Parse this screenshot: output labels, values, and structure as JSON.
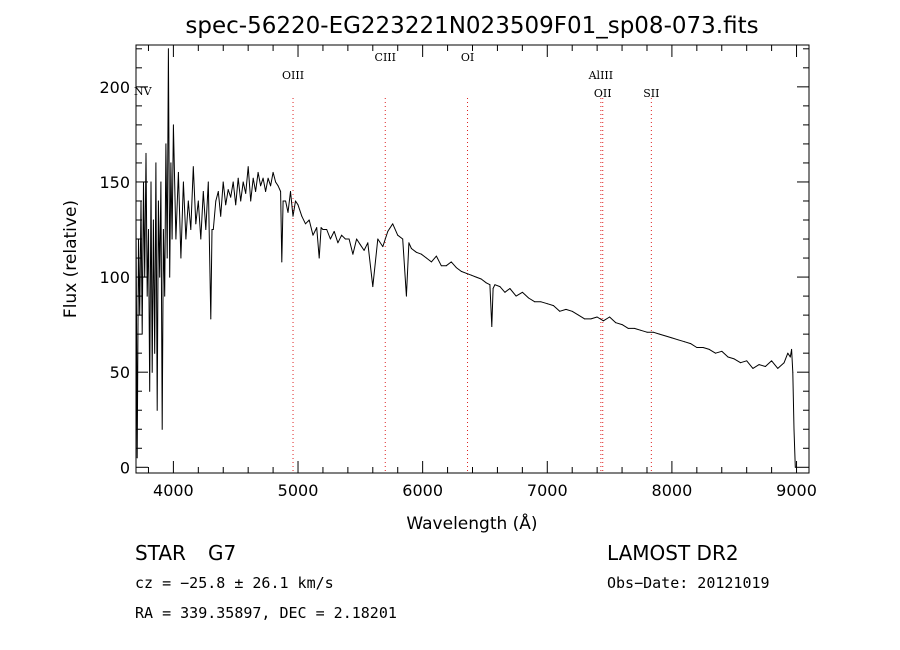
{
  "chart_data": {
    "type": "line",
    "title": "spec-56220-EG223221N023509F01_sp08-073.fits",
    "xlabel": "Wavelength (Å)",
    "ylabel": "Flux (relative)",
    "xlim": [
      3700,
      9100
    ],
    "ylim": [
      -3,
      222
    ],
    "x_ticks": [
      4000,
      5000,
      6000,
      7000,
      8000,
      9000
    ],
    "y_ticks": [
      0,
      50,
      100,
      150,
      200
    ],
    "series": [
      {
        "name": "spectrum",
        "x": [
          3700,
          3710,
          3720,
          3730,
          3740,
          3750,
          3760,
          3770,
          3780,
          3790,
          3800,
          3810,
          3820,
          3830,
          3840,
          3850,
          3860,
          3870,
          3880,
          3890,
          3900,
          3910,
          3920,
          3930,
          3940,
          3950,
          3960,
          3970,
          3980,
          3990,
          4000,
          4020,
          4040,
          4060,
          4080,
          4100,
          4120,
          4140,
          4160,
          4180,
          4200,
          4220,
          4240,
          4260,
          4280,
          4300,
          4310,
          4320,
          4340,
          4360,
          4380,
          4400,
          4420,
          4440,
          4460,
          4480,
          4500,
          4520,
          4540,
          4560,
          4580,
          4600,
          4620,
          4640,
          4660,
          4680,
          4700,
          4720,
          4740,
          4760,
          4780,
          4800,
          4820,
          4840,
          4860,
          4870,
          4880,
          4900,
          4920,
          4940,
          4960,
          4980,
          5000,
          5030,
          5060,
          5090,
          5120,
          5150,
          5170,
          5185,
          5200,
          5230,
          5260,
          5290,
          5320,
          5350,
          5380,
          5410,
          5440,
          5470,
          5500,
          5530,
          5560,
          5600,
          5640,
          5680,
          5720,
          5760,
          5800,
          5840,
          5870,
          5890,
          5910,
          5950,
          5990,
          6030,
          6070,
          6110,
          6150,
          6190,
          6230,
          6270,
          6310,
          6350,
          6390,
          6430,
          6470,
          6510,
          6540,
          6555,
          6565,
          6580,
          6620,
          6660,
          6700,
          6750,
          6800,
          6850,
          6900,
          6950,
          7000,
          7050,
          7100,
          7150,
          7200,
          7250,
          7300,
          7350,
          7400,
          7450,
          7500,
          7550,
          7600,
          7650,
          7700,
          7750,
          7800,
          7850,
          7900,
          7950,
          8000,
          8050,
          8100,
          8150,
          8200,
          8250,
          8300,
          8350,
          8400,
          8450,
          8500,
          8550,
          8600,
          8650,
          8700,
          8750,
          8800,
          8850,
          8900,
          8930,
          8950,
          8960,
          8970,
          8980,
          8990,
          9000
        ],
        "y": [
          130,
          5,
          120,
          80,
          140,
          70,
          150,
          100,
          165,
          90,
          125,
          40,
          150,
          50,
          130,
          60,
          160,
          30,
          140,
          100,
          150,
          20,
          125,
          90,
          170,
          110,
          220,
          100,
          160,
          120,
          180,
          120,
          155,
          110,
          150,
          120,
          140,
          125,
          158,
          128,
          140,
          120,
          145,
          125,
          150,
          78,
          125,
          125,
          140,
          145,
          132,
          150,
          138,
          146,
          142,
          150,
          138,
          152,
          140,
          150,
          144,
          158,
          140,
          152,
          145,
          155,
          148,
          152,
          145,
          152,
          148,
          155,
          150,
          148,
          145,
          108,
          140,
          140,
          134,
          145,
          132,
          140,
          138,
          132,
          128,
          130,
          122,
          126,
          110,
          126,
          125,
          125,
          120,
          124,
          118,
          122,
          120,
          120,
          112,
          120,
          117,
          114,
          118,
          95,
          120,
          116,
          124,
          128,
          122,
          120,
          90,
          118,
          115,
          113,
          112,
          110,
          108,
          111,
          106,
          106,
          108,
          105,
          103,
          102,
          101,
          100,
          99,
          97,
          96,
          74,
          94,
          96,
          95,
          92,
          94,
          90,
          92,
          89,
          87,
          87,
          86,
          85,
          82,
          83,
          82,
          80,
          78,
          78,
          79,
          77,
          79,
          76,
          75,
          73,
          73,
          72,
          71,
          71,
          70,
          69,
          68,
          67,
          66,
          65,
          63,
          63,
          62,
          60,
          61,
          58,
          57,
          55,
          56,
          52,
          54,
          53,
          56,
          52,
          55,
          60,
          58,
          62,
          50,
          20,
          0,
          0
        ]
      }
    ],
    "line_markers": [
      {
        "label": "NV",
        "wavelength": 3740
      },
      {
        "label": "OIII",
        "wavelength": 4960
      },
      {
        "label": "CIII",
        "wavelength": 5700
      },
      {
        "label": "OI",
        "wavelength": 6360
      },
      {
        "label": "AlIII",
        "wavelength": 7430
      },
      {
        "label": "OII",
        "wavelength": 7445
      },
      {
        "label": "SII",
        "wavelength": 7835
      }
    ]
  },
  "info": {
    "object_type": "STAR",
    "subclass": "G7",
    "redshift": "cz = −25.8 ± 26.1 km/s",
    "coords": "RA = 339.35897, DEC =   2.18201",
    "survey": "LAMOST DR2",
    "obs_date": "Obs−Date: 20121019"
  },
  "colors": {
    "spectrum": "#000000",
    "marker_line": "#dd2222",
    "axis": "#000000"
  }
}
